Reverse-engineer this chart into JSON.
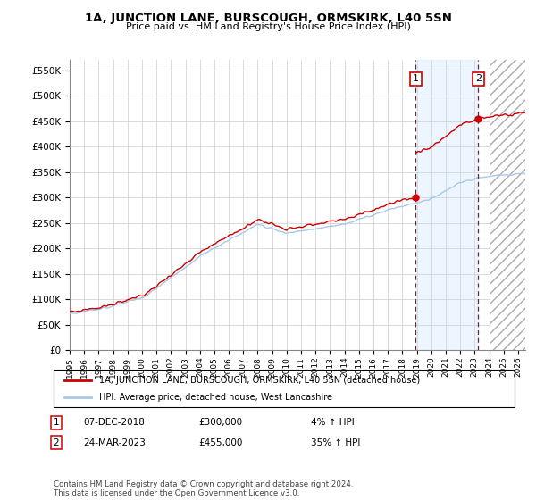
{
  "title": "1A, JUNCTION LANE, BURSCOUGH, ORMSKIRK, L40 5SN",
  "subtitle": "Price paid vs. HM Land Registry's House Price Index (HPI)",
  "legend_line1": "1A, JUNCTION LANE, BURSCOUGH, ORMSKIRK, L40 5SN (detached house)",
  "legend_line2": "HPI: Average price, detached house, West Lancashire",
  "annotation1_date": "07-DEC-2018",
  "annotation1_price": "£300,000",
  "annotation1_pct": "4% ↑ HPI",
  "annotation2_date": "24-MAR-2023",
  "annotation2_price": "£455,000",
  "annotation2_pct": "35% ↑ HPI",
  "footer": "Contains HM Land Registry data © Crown copyright and database right 2024.\nThis data is licensed under the Open Government Licence v3.0.",
  "hpi_color": "#a8c8e8",
  "price_color": "#cc0000",
  "annotation_color": "#cc0000",
  "background_color": "#ffffff",
  "grid_color": "#cccccc",
  "sale1_x": 2018.917,
  "sale1_price": 300000,
  "sale2_x": 2023.25,
  "sale2_price": 455000,
  "xlim_start": 1995.0,
  "xlim_end": 2026.5,
  "ylim_bottom": 0,
  "ylim_top": 570000,
  "hatch_start": 2024.0,
  "shade_color": "#ddeeff"
}
